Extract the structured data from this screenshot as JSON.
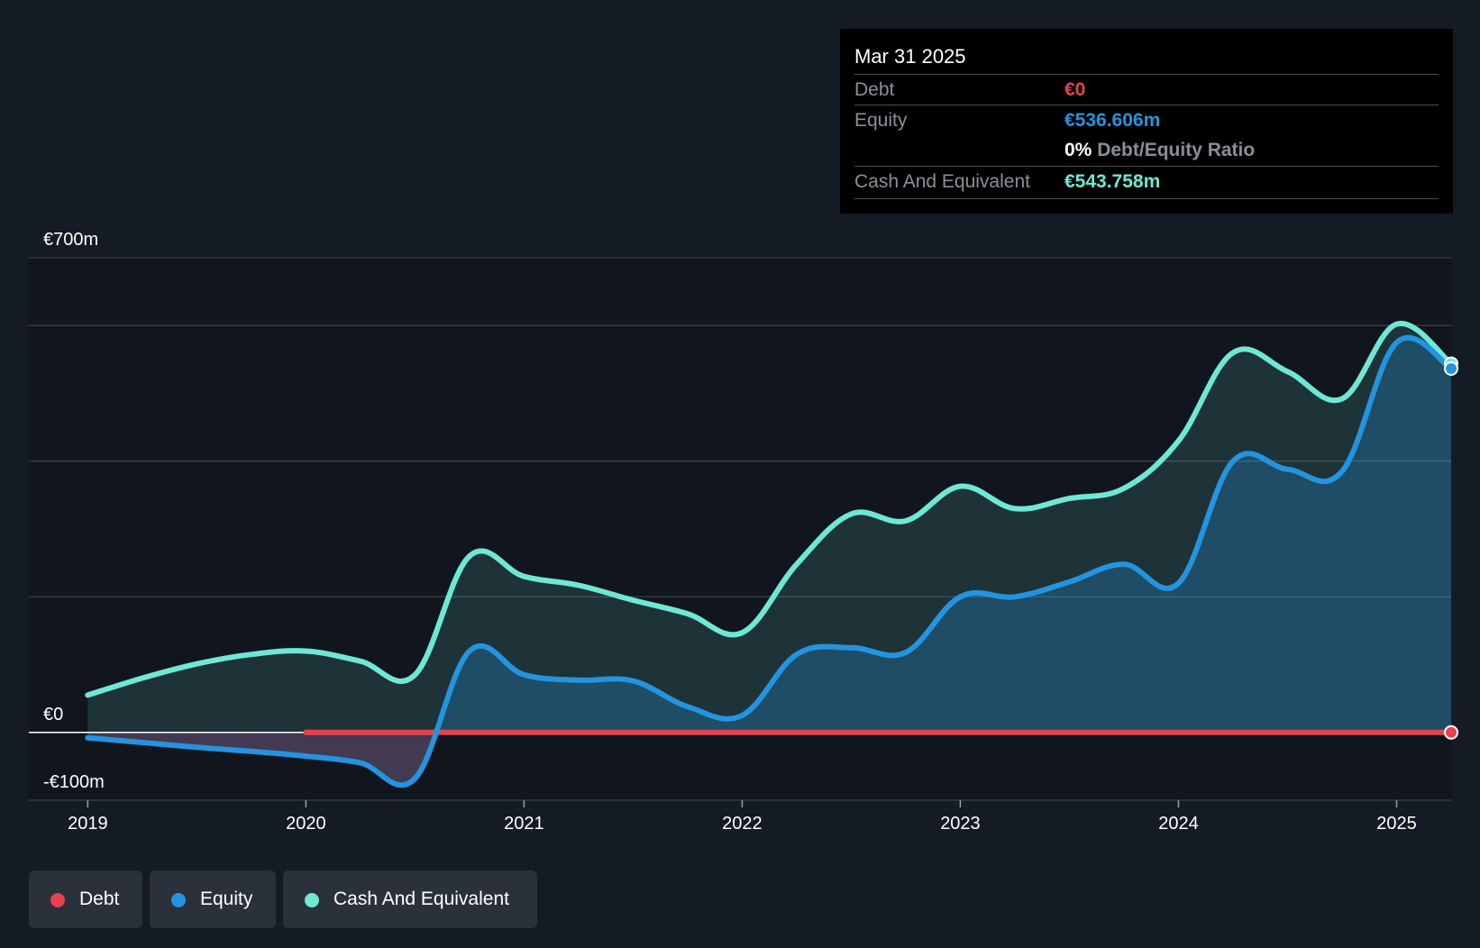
{
  "tooltip": {
    "date": "Mar 31 2025",
    "debt_label": "Debt",
    "debt_value": "€0",
    "equity_label": "Equity",
    "equity_value": "€536.606m",
    "ratio_value": "0%",
    "ratio_label": "Debt/Equity Ratio",
    "cash_label": "Cash And Equivalent",
    "cash_value": "€543.758m"
  },
  "colors": {
    "debt": "#e5424d",
    "equity": "#2394df",
    "cash": "#6ee8d4",
    "background": "#151b24"
  },
  "legend": [
    {
      "label": "Debt",
      "color": "#e5424d"
    },
    {
      "label": "Equity",
      "color": "#2394df"
    },
    {
      "label": "Cash And Equivalent",
      "color": "#6ee8d4"
    }
  ],
  "chart_data": {
    "type": "area",
    "title": "",
    "xlabel": "",
    "ylabel": "",
    "ylim": [
      -100,
      700
    ],
    "y_tick_labels": [
      {
        "value": 700,
        "label": "€700m"
      },
      {
        "value": 0,
        "label": "€0"
      },
      {
        "value": -100,
        "label": "-€100m"
      }
    ],
    "gridlines": [
      700,
      600,
      400,
      200
    ],
    "x_ticks": [
      {
        "value": 2019,
        "label": "2019"
      },
      {
        "value": 2020,
        "label": "2020"
      },
      {
        "value": 2021,
        "label": "2021"
      },
      {
        "value": 2022,
        "label": "2022"
      },
      {
        "value": 2023,
        "label": "2023"
      },
      {
        "value": 2024,
        "label": "2024"
      },
      {
        "value": 2025,
        "label": "2025"
      }
    ],
    "xlim": [
      2018.73,
      2025.25
    ],
    "series": [
      {
        "name": "Cash And Equivalent",
        "points": [
          [
            2019.0,
            55
          ],
          [
            2019.25,
            80
          ],
          [
            2019.5,
            101
          ],
          [
            2019.75,
            115
          ],
          [
            2020.0,
            120
          ],
          [
            2020.25,
            105
          ],
          [
            2020.5,
            85
          ],
          [
            2020.75,
            260
          ],
          [
            2021.0,
            230
          ],
          [
            2021.25,
            217
          ],
          [
            2021.5,
            195
          ],
          [
            2021.75,
            175
          ],
          [
            2022.0,
            147
          ],
          [
            2022.25,
            248
          ],
          [
            2022.5,
            322
          ],
          [
            2022.75,
            312
          ],
          [
            2023.0,
            363
          ],
          [
            2023.25,
            330
          ],
          [
            2023.5,
            345
          ],
          [
            2023.75,
            360
          ],
          [
            2024.0,
            430
          ],
          [
            2024.25,
            560
          ],
          [
            2024.5,
            532
          ],
          [
            2024.75,
            492
          ],
          [
            2025.0,
            602
          ],
          [
            2025.25,
            543.758
          ]
        ]
      },
      {
        "name": "Equity",
        "points": [
          [
            2019.0,
            -8
          ],
          [
            2019.25,
            -15
          ],
          [
            2019.5,
            -22
          ],
          [
            2019.75,
            -28
          ],
          [
            2020.0,
            -35
          ],
          [
            2020.25,
            -45
          ],
          [
            2020.5,
            -68
          ],
          [
            2020.75,
            120
          ],
          [
            2021.0,
            85
          ],
          [
            2021.25,
            77
          ],
          [
            2021.5,
            76
          ],
          [
            2021.75,
            38
          ],
          [
            2022.0,
            25
          ],
          [
            2022.25,
            115
          ],
          [
            2022.5,
            125
          ],
          [
            2022.75,
            118
          ],
          [
            2023.0,
            200
          ],
          [
            2023.25,
            200
          ],
          [
            2023.5,
            222
          ],
          [
            2023.75,
            248
          ],
          [
            2024.0,
            220
          ],
          [
            2024.25,
            400
          ],
          [
            2024.5,
            388
          ],
          [
            2024.75,
            385
          ],
          [
            2025.0,
            575
          ],
          [
            2025.25,
            536.606
          ]
        ]
      },
      {
        "name": "Debt",
        "points": [
          [
            2020.0,
            0
          ],
          [
            2020.5,
            0
          ],
          [
            2021.0,
            0
          ],
          [
            2021.5,
            0
          ],
          [
            2022.0,
            0
          ],
          [
            2022.5,
            0
          ],
          [
            2023.0,
            0
          ],
          [
            2023.5,
            0
          ],
          [
            2024.0,
            0
          ],
          [
            2024.5,
            0
          ],
          [
            2025.0,
            0
          ],
          [
            2025.25,
            0
          ]
        ]
      }
    ]
  }
}
